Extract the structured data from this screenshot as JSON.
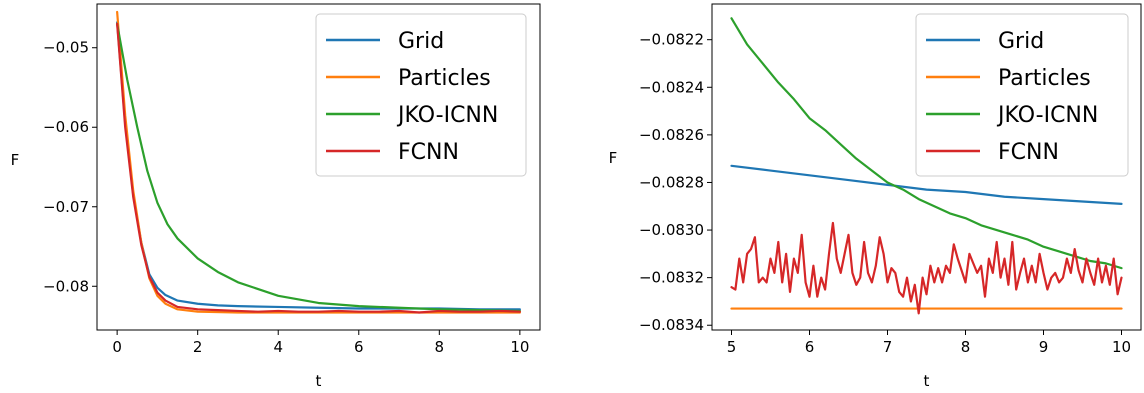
{
  "chart_data": [
    {
      "type": "line",
      "panel": "left",
      "title": "",
      "xlabel": "t",
      "ylabel": "F",
      "xlim": [
        -0.5,
        10.5
      ],
      "ylim": [
        -0.0855,
        -0.0445
      ],
      "xticks": [
        0,
        2,
        4,
        6,
        8,
        10
      ],
      "xtick_labels": [
        "0",
        "2",
        "4",
        "6",
        "8",
        "10"
      ],
      "yticks": [
        -0.05,
        -0.06,
        -0.07,
        -0.08
      ],
      "ytick_labels": [
        "−0.05",
        "−0.06",
        "−0.07",
        "−0.08"
      ],
      "grid": false,
      "legend": "top-right",
      "series": [
        {
          "name": "Grid",
          "color": "#1f77b4",
          "x": [
            0,
            0.2,
            0.4,
            0.6,
            0.8,
            1.0,
            1.2,
            1.5,
            2,
            2.5,
            3,
            4,
            5,
            6,
            7,
            8,
            9,
            10
          ],
          "y": [
            -0.0468,
            -0.0595,
            -0.0685,
            -0.0745,
            -0.0785,
            -0.0802,
            -0.0811,
            -0.0818,
            -0.0822,
            -0.0824,
            -0.0825,
            -0.0826,
            -0.0827,
            -0.0828,
            -0.0828,
            -0.0828,
            -0.0829,
            -0.0829
          ]
        },
        {
          "name": "Particles",
          "color": "#ff7f0e",
          "x": [
            0,
            0.2,
            0.4,
            0.6,
            0.8,
            1.0,
            1.2,
            1.5,
            2,
            3,
            4,
            5,
            6,
            7,
            8,
            9,
            10
          ],
          "y": [
            -0.0455,
            -0.0585,
            -0.068,
            -0.0745,
            -0.079,
            -0.0812,
            -0.0822,
            -0.0829,
            -0.0832,
            -0.0833,
            -0.0833,
            -0.0833,
            -0.0833,
            -0.0833,
            -0.0833,
            -0.0833,
            -0.0833
          ]
        },
        {
          "name": "JKO-ICNN",
          "color": "#2ca02c",
          "x": [
            0,
            0.25,
            0.5,
            0.75,
            1.0,
            1.25,
            1.5,
            2,
            2.5,
            3,
            4,
            5,
            6,
            7,
            8,
            9,
            10
          ],
          "y": [
            -0.047,
            -0.054,
            -0.06,
            -0.0655,
            -0.0695,
            -0.0722,
            -0.074,
            -0.0765,
            -0.0782,
            -0.0795,
            -0.0812,
            -0.0821,
            -0.0825,
            -0.0827,
            -0.0829,
            -0.083,
            -0.0831
          ]
        },
        {
          "name": "FCNN",
          "color": "#d62728",
          "x": [
            0,
            0.2,
            0.4,
            0.6,
            0.8,
            1.0,
            1.2,
            1.5,
            2,
            2.5,
            3,
            3.5,
            4,
            4.5,
            5,
            5.5,
            6,
            6.5,
            7,
            7.5,
            8,
            8.5,
            9,
            9.5,
            10
          ],
          "y": [
            -0.047,
            -0.06,
            -0.0688,
            -0.0748,
            -0.0788,
            -0.0808,
            -0.0818,
            -0.0826,
            -0.0829,
            -0.083,
            -0.0831,
            -0.0832,
            -0.0831,
            -0.0832,
            -0.0832,
            -0.0831,
            -0.0832,
            -0.0832,
            -0.0831,
            -0.0833,
            -0.0831,
            -0.0832,
            -0.0832,
            -0.0831,
            -0.0832
          ]
        }
      ]
    },
    {
      "type": "line",
      "panel": "right",
      "title": "",
      "xlabel": "t",
      "ylabel": "F",
      "xlim": [
        4.75,
        10.25
      ],
      "ylim": [
        -0.08342,
        -0.08205
      ],
      "xticks": [
        5,
        6,
        7,
        8,
        9,
        10
      ],
      "xtick_labels": [
        "5",
        "6",
        "7",
        "8",
        "9",
        "10"
      ],
      "yticks": [
        -0.0822,
        -0.0824,
        -0.0826,
        -0.0828,
        -0.083,
        -0.0832,
        -0.0834
      ],
      "ytick_labels": [
        "−0.0822",
        "−0.0824",
        "−0.0826",
        "−0.0828",
        "−0.0830",
        "−0.0832",
        "−0.0834"
      ],
      "grid": false,
      "legend": "top-right",
      "series": [
        {
          "name": "Grid",
          "color": "#1f77b4",
          "x": [
            5,
            5.5,
            6,
            6.5,
            7,
            7.5,
            8,
            8.5,
            9,
            9.5,
            10
          ],
          "y": [
            -0.08273,
            -0.08275,
            -0.08277,
            -0.08279,
            -0.08281,
            -0.08283,
            -0.08284,
            -0.08286,
            -0.08287,
            -0.08288,
            -0.08289
          ]
        },
        {
          "name": "Particles",
          "color": "#ff7f0e",
          "x": [
            5,
            10
          ],
          "y": [
            -0.08333,
            -0.08333
          ]
        },
        {
          "name": "JKO-ICNN",
          "color": "#2ca02c",
          "x": [
            5,
            5.2,
            5.4,
            5.6,
            5.8,
            6.0,
            6.2,
            6.4,
            6.6,
            6.8,
            7.0,
            7.2,
            7.4,
            7.6,
            7.8,
            8.0,
            8.2,
            8.4,
            8.6,
            8.8,
            9.0,
            9.2,
            9.4,
            9.6,
            9.8,
            10.0
          ],
          "y": [
            -0.08211,
            -0.08222,
            -0.0823,
            -0.08238,
            -0.08245,
            -0.08253,
            -0.08258,
            -0.08264,
            -0.0827,
            -0.08275,
            -0.0828,
            -0.08283,
            -0.08287,
            -0.0829,
            -0.08293,
            -0.08295,
            -0.08298,
            -0.083,
            -0.08302,
            -0.08304,
            -0.08307,
            -0.08309,
            -0.08311,
            -0.08313,
            -0.08314,
            -0.08316
          ]
        },
        {
          "name": "FCNN",
          "color": "#d62728",
          "x": [
            5.0,
            5.05,
            5.1,
            5.15,
            5.2,
            5.25,
            5.3,
            5.35,
            5.4,
            5.45,
            5.5,
            5.55,
            5.6,
            5.65,
            5.7,
            5.75,
            5.8,
            5.85,
            5.9,
            5.95,
            6.0,
            6.05,
            6.1,
            6.15,
            6.2,
            6.25,
            6.3,
            6.35,
            6.4,
            6.45,
            6.5,
            6.55,
            6.6,
            6.65,
            6.7,
            6.75,
            6.8,
            6.85,
            6.9,
            6.95,
            7.0,
            7.05,
            7.1,
            7.15,
            7.2,
            7.25,
            7.3,
            7.35,
            7.4,
            7.45,
            7.5,
            7.55,
            7.6,
            7.65,
            7.7,
            7.75,
            7.8,
            7.85,
            7.9,
            7.95,
            8.0,
            8.05,
            8.1,
            8.15,
            8.2,
            8.25,
            8.3,
            8.35,
            8.4,
            8.45,
            8.5,
            8.55,
            8.6,
            8.65,
            8.7,
            8.75,
            8.8,
            8.85,
            8.9,
            8.95,
            9.0,
            9.05,
            9.1,
            9.15,
            9.2,
            9.25,
            9.3,
            9.35,
            9.4,
            9.45,
            9.5,
            9.55,
            9.6,
            9.65,
            9.7,
            9.75,
            9.8,
            9.85,
            9.9,
            9.95,
            10.0
          ],
          "y": [
            -0.08324,
            -0.08325,
            -0.08312,
            -0.08322,
            -0.0831,
            -0.08308,
            -0.08303,
            -0.08322,
            -0.0832,
            -0.08322,
            -0.08312,
            -0.08318,
            -0.08305,
            -0.08322,
            -0.0831,
            -0.08326,
            -0.08312,
            -0.08318,
            -0.08302,
            -0.08322,
            -0.08328,
            -0.08315,
            -0.08328,
            -0.0832,
            -0.08325,
            -0.0831,
            -0.08297,
            -0.08312,
            -0.08318,
            -0.0831,
            -0.08302,
            -0.08318,
            -0.08323,
            -0.0832,
            -0.08305,
            -0.08318,
            -0.08322,
            -0.08315,
            -0.08303,
            -0.0831,
            -0.08322,
            -0.08316,
            -0.08318,
            -0.08326,
            -0.08328,
            -0.0832,
            -0.0833,
            -0.08323,
            -0.08335,
            -0.0832,
            -0.08327,
            -0.08315,
            -0.08322,
            -0.08316,
            -0.08322,
            -0.08315,
            -0.08318,
            -0.08306,
            -0.08312,
            -0.08317,
            -0.08322,
            -0.0831,
            -0.08314,
            -0.08318,
            -0.08315,
            -0.08328,
            -0.08312,
            -0.08318,
            -0.08305,
            -0.0832,
            -0.08312,
            -0.08323,
            -0.08305,
            -0.08325,
            -0.08318,
            -0.08312,
            -0.08322,
            -0.08315,
            -0.08322,
            -0.0831,
            -0.08318,
            -0.08325,
            -0.0832,
            -0.08318,
            -0.08322,
            -0.0832,
            -0.08312,
            -0.08318,
            -0.08308,
            -0.08317,
            -0.08322,
            -0.08312,
            -0.08318,
            -0.08323,
            -0.08312,
            -0.08322,
            -0.08315,
            -0.08323,
            -0.08312,
            -0.08327,
            -0.0832
          ]
        }
      ]
    }
  ]
}
